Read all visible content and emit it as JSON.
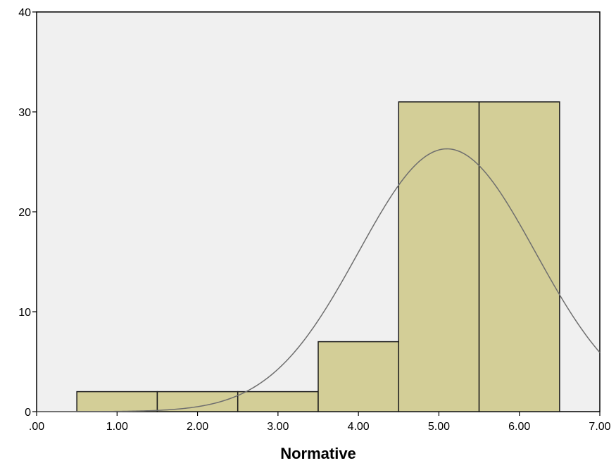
{
  "chart_data": {
    "type": "bar",
    "subtype": "histogram",
    "xlabel": "Normative",
    "ylabel": "",
    "xlim": [
      0,
      7
    ],
    "ylim": [
      0,
      40
    ],
    "x_ticks": [
      ".00",
      "1.00",
      "2.00",
      "3.00",
      "4.00",
      "5.00",
      "6.00",
      "7.00"
    ],
    "y_ticks": [
      "0",
      "10",
      "20",
      "30",
      "40"
    ],
    "bins": [
      {
        "from": 0.5,
        "to": 1.5,
        "value": 2
      },
      {
        "from": 1.5,
        "to": 2.5,
        "value": 2
      },
      {
        "from": 2.5,
        "to": 3.5,
        "value": 2
      },
      {
        "from": 3.5,
        "to": 4.5,
        "value": 7
      },
      {
        "from": 4.5,
        "to": 5.5,
        "value": 31
      },
      {
        "from": 5.5,
        "to": 6.5,
        "value": 31
      }
    ],
    "normal_curve": {
      "mean": 5.1,
      "sd": 1.1,
      "peak": 26.3
    },
    "grid": false,
    "colors": {
      "plot_background": "#f0f0f0",
      "bar_fill": "#d3ce97",
      "bar_stroke": "#1a1a1a",
      "curve": "#6e6e6e"
    }
  }
}
